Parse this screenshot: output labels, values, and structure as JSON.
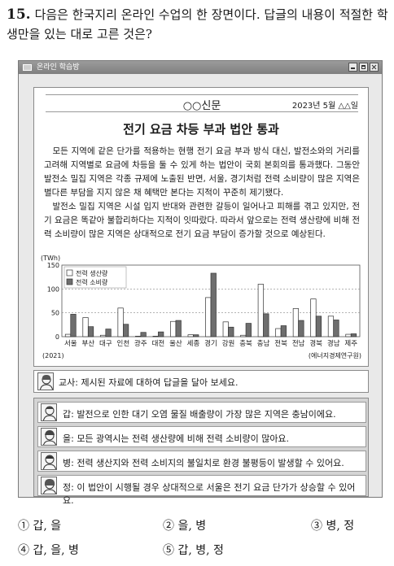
{
  "question": {
    "number": "15.",
    "text": "다음은 한국지리 온라인 수업의 한 장면이다. 답글의 내용이 적절한 학생만을 있는 대로 고른 것은?"
  },
  "window": {
    "title": "온라인 학습방"
  },
  "newspaper": {
    "name": "○○신문",
    "date": "2023년 5월 △△일",
    "headline": "전기 요금 차등 부과 법안 통과",
    "paragraphs": [
      "모든 지역에 같은 단가를 적용하는 현행 전기 요금 부과 방식 대신, 발전소와의 거리를 고려해 지역별로 요금에 차등을 둘 수 있게 하는 법안이 국회 본회의를 통과했다. 그동안 발전소 밀집 지역은 각종 규제에 노출된 반면, 서울, 경기처럼 전력 소비량이 많은 지역은 별다른 부담을 지지 않은 채 혜택만 본다는 지적이 꾸준히 제기됐다.",
      "발전소 밀집 지역은 시설 입지 반대와 관련한 갈등이 일어나고 피해를 겪고 있지만, 전기 요금은 똑같아 불합리하다는 지적이 잇따랐다. 따라서 앞으로는 전력 생산량에 비해 전력 소비량이 많은 지역은 상대적으로 전기 요금 부담이 증가할 것으로 예상된다."
    ]
  },
  "chart_data": {
    "type": "bar",
    "unit": "(TWh)",
    "categories": [
      "서울",
      "부산",
      "대구",
      "인천",
      "광주",
      "대전",
      "울산",
      "세종",
      "경기",
      "강원",
      "충북",
      "충남",
      "전북",
      "전남",
      "경북",
      "경남",
      "제주"
    ],
    "series": [
      {
        "name": "전력 생산량",
        "color": "#ffffff",
        "values": [
          5,
          40,
          3,
          60,
          1,
          1,
          32,
          4,
          82,
          31,
          3,
          110,
          17,
          59,
          79,
          43,
          5
        ]
      },
      {
        "name": "전력 소비량",
        "color": "#6e6e6e",
        "values": [
          47,
          21,
          16,
          26,
          9,
          10,
          34,
          4,
          133,
          20,
          28,
          48,
          23,
          34,
          43,
          35,
          6
        ]
      }
    ],
    "yticks": [
      0,
      50,
      100,
      150
    ],
    "ylim": [
      0,
      150
    ],
    "legend_position": "top-left",
    "year": "(2021)",
    "source": "(에너지경제연구원)"
  },
  "teacher": {
    "text": "교사: 제시된 자료에 대하여 답글을 달아 보세요."
  },
  "replies": [
    {
      "text": "갑: 발전으로 인한 대기 오염 물질 배출량이 가장 많은 지역은 충남이에요."
    },
    {
      "text": "을: 모든 광역시는 전력 생산량에 비해 전력 소비량이 많아요."
    },
    {
      "text": "병: 전력 생산지와 전력 소비지의 불일치로 환경 불평등이 발생할 수 있어요."
    },
    {
      "text": "정: 이 법안이 시행될 경우 상대적으로 서울은 전기 요금 단가가 상승할 수 있어요."
    }
  ],
  "choices": [
    "① 갑, 을",
    "② 을, 병",
    "③ 병, 정",
    "④ 갑, 을, 병",
    "⑤ 갑, 병, 정"
  ]
}
